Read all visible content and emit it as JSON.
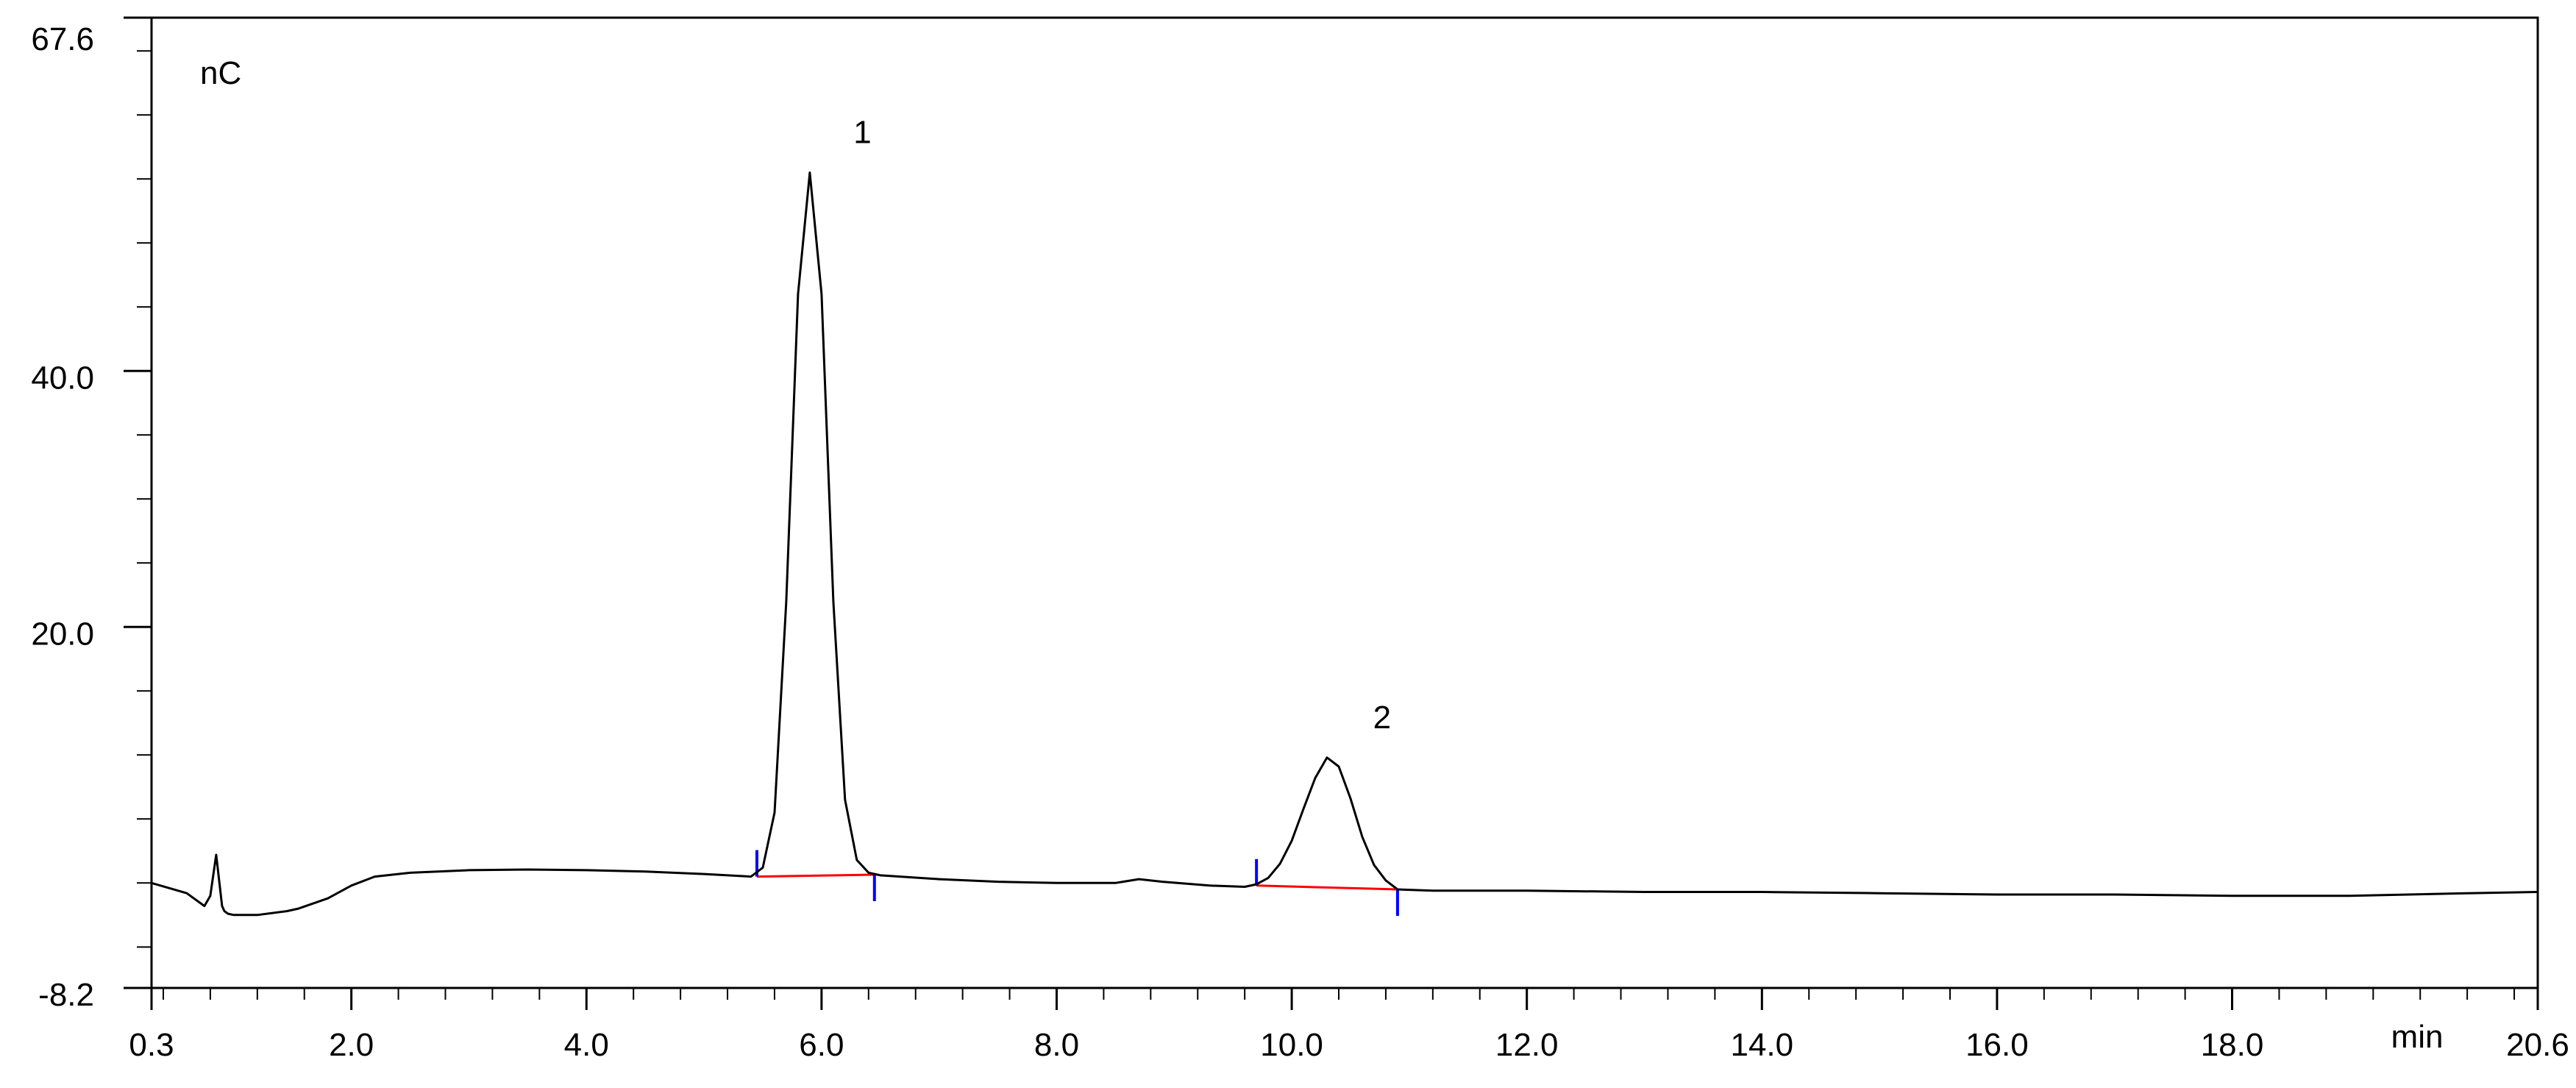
{
  "chart_data": {
    "type": "line",
    "y_unit": "nC",
    "x_unit": "min",
    "xlim": [
      0.3,
      20.6
    ],
    "ylim": [
      -8.2,
      67.6
    ],
    "x_ticks": [
      0.3,
      2.0,
      4.0,
      6.0,
      8.0,
      10.0,
      12.0,
      14.0,
      16.0,
      18.0,
      20.6
    ],
    "x_tick_labels": [
      "0.3",
      "2.0",
      "4.0",
      "6.0",
      "8.0",
      "10.0",
      "12.0",
      "14.0",
      "16.0",
      "18.0",
      "20.6"
    ],
    "y_ticks": [
      -8.2,
      20.0,
      40.0,
      67.6
    ],
    "y_tick_labels": [
      "-8.2",
      "20.0",
      "40.0",
      "67.6"
    ],
    "series": [
      {
        "color": "#000000",
        "x": [
          0.3,
          0.6,
          0.75,
          0.8,
          0.85,
          0.9,
          0.92,
          0.95,
          1.0,
          1.2,
          1.45,
          1.55,
          1.8,
          2.0,
          2.2,
          2.5,
          3.0,
          3.5,
          4.0,
          4.5,
          5.0,
          5.4,
          5.5,
          5.6,
          5.7,
          5.8,
          5.9,
          6.0,
          6.1,
          6.2,
          6.3,
          6.4,
          6.5,
          7.0,
          7.5,
          8.0,
          8.5,
          8.7,
          8.9,
          9.3,
          9.6,
          9.7,
          9.8,
          9.9,
          10.0,
          10.1,
          10.2,
          10.3,
          10.4,
          10.5,
          10.6,
          10.7,
          10.8,
          10.9,
          11.2,
          12.0,
          13.0,
          14.0,
          15.0,
          16.0,
          17.0,
          18.0,
          19.0,
          20.0,
          20.6
        ],
        "y": [
          0.0,
          -0.8,
          -1.8,
          -1.0,
          2.2,
          -1.8,
          -2.2,
          -2.4,
          -2.5,
          -2.5,
          -2.2,
          -2.0,
          -1.2,
          -0.2,
          0.5,
          0.8,
          1.0,
          1.05,
          1.0,
          0.9,
          0.7,
          0.5,
          1.2,
          5.5,
          22.0,
          46.0,
          55.5,
          46.0,
          22.0,
          6.5,
          1.8,
          0.8,
          0.6,
          0.3,
          0.1,
          0.0,
          0.0,
          0.3,
          0.1,
          -0.2,
          -0.3,
          -0.1,
          0.4,
          1.5,
          3.3,
          5.8,
          8.2,
          9.8,
          9.1,
          6.6,
          3.6,
          1.4,
          0.2,
          -0.5,
          -0.6,
          -0.6,
          -0.7,
          -0.7,
          -0.8,
          -0.9,
          -0.9,
          -1.0,
          -1.0,
          -0.8,
          -0.7
        ]
      }
    ],
    "baselines": [
      {
        "color": "#ff0000",
        "x": [
          5.45,
          6.45
        ],
        "y": [
          0.5,
          0.65
        ]
      },
      {
        "color": "#ff0000",
        "x": [
          9.7,
          10.9
        ],
        "y": [
          -0.2,
          -0.5
        ]
      }
    ],
    "peak_markers": [
      {
        "color": "#0000ff",
        "x": 5.45,
        "y": 0.5,
        "side": "up"
      },
      {
        "color": "#0000ff",
        "x": 6.45,
        "y": 0.65,
        "side": "down"
      },
      {
        "color": "#0000ff",
        "x": 9.7,
        "y": -0.2,
        "side": "up"
      },
      {
        "color": "#0000ff",
        "x": 10.9,
        "y": -0.5,
        "side": "down"
      }
    ],
    "peaks": [
      {
        "label": "1",
        "x": 5.91,
        "y": 55.5
      },
      {
        "label": "2",
        "x": 10.33,
        "y": 9.8
      }
    ],
    "grid": false
  }
}
